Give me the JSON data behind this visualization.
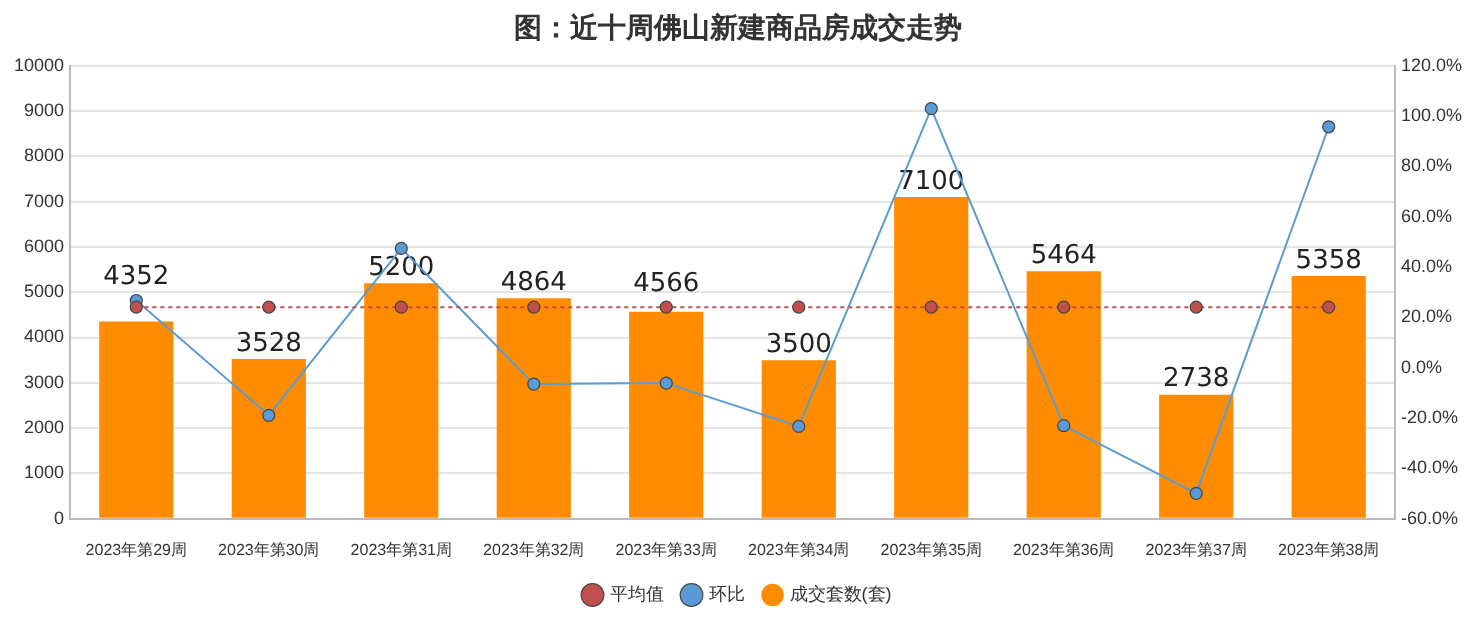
{
  "chart_data": {
    "type": "bar",
    "title": "图：近十周佛山新建商品房成交走势",
    "categories": [
      "2023年第29周",
      "2023年第30周",
      "2023年第31周",
      "2023年第32周",
      "2023年第33周",
      "2023年第34周",
      "2023年第35周",
      "2023年第36周",
      "2023年第37周",
      "2023年第38周"
    ],
    "series": [
      {
        "name": "成交套数(套)",
        "color": "#ff8c00",
        "values": [
          4352,
          3528,
          5200,
          4864,
          4566,
          3500,
          7100,
          5464,
          2738,
          5358
        ],
        "value_labels": [
          "4352",
          "3528",
          "5200",
          "4864",
          "4566",
          "3500",
          "7100",
          "5464",
          "2738",
          "5358"
        ]
      },
      {
        "name": "平均值",
        "type": "line",
        "color": "#c0504d",
        "marker": "circle",
        "line_style": "dotted",
        "values": [
          4670,
          4670,
          4670,
          4670,
          4670,
          4670,
          4670,
          4670,
          4670,
          4670
        ]
      },
      {
        "name": "环比",
        "type": "line",
        "axis": "y2",
        "color": "#5b9bd5",
        "marker": "circle",
        "line_style": "solid",
        "values": [
          26.7,
          -18.9,
          47.4,
          -6.5,
          -6.1,
          -23.3,
          102.9,
          -23.0,
          -49.9,
          95.7
        ]
      }
    ],
    "ylim": [
      0,
      10000
    ],
    "yticks": [
      0,
      1000,
      2000,
      3000,
      4000,
      5000,
      6000,
      7000,
      8000,
      9000,
      10000
    ],
    "y2lim": [
      -60,
      120
    ],
    "y2ticks": [
      {
        "value": -60,
        "label": "-60.0%"
      },
      {
        "value": -40,
        "label": "-40.0%"
      },
      {
        "value": -20,
        "label": "-20.0%"
      },
      {
        "value": 0,
        "label": "0.0%"
      },
      {
        "value": 20,
        "label": "20.0%"
      },
      {
        "value": 40,
        "label": "40.0%"
      },
      {
        "value": 60,
        "label": "60.0%"
      },
      {
        "value": 80,
        "label": "80.0%"
      },
      {
        "value": 100,
        "label": "100.0%"
      },
      {
        "value": 120,
        "label": "120.0%"
      }
    ],
    "grid": "y",
    "legend": "bottom"
  }
}
